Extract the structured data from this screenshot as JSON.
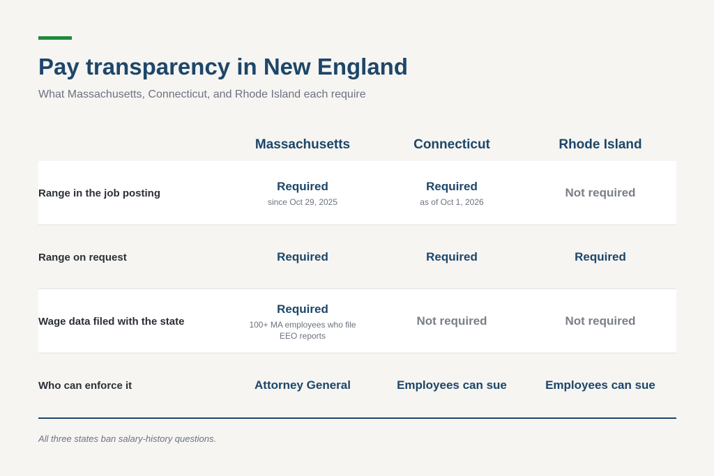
{
  "header": {
    "title": "Pay transparency in New England",
    "subtitle": "What Massachusetts, Connecticut, and Rhode Island each require"
  },
  "colors": {
    "accent": "#1e8a3c",
    "navy": "#1d4669",
    "muted": "#7a7f87"
  },
  "table": {
    "columns": [
      "Massachusetts",
      "Connecticut",
      "Rhode Island"
    ],
    "rows": [
      {
        "label": "Range in the job posting",
        "cells": [
          {
            "status": "Required",
            "note": "since Oct 29, 2025"
          },
          {
            "status": "Required",
            "note": "as of Oct 1, 2026"
          },
          {
            "status": "Not required",
            "note": ""
          }
        ]
      },
      {
        "label": "Range on request",
        "cells": [
          {
            "status": "Required",
            "note": ""
          },
          {
            "status": "Required",
            "note": ""
          },
          {
            "status": "Required",
            "note": ""
          }
        ]
      },
      {
        "label": "Wage data filed with the state",
        "cells": [
          {
            "status": "Required",
            "note": "100+ MA employees who file EEO reports"
          },
          {
            "status": "Not required",
            "note": ""
          },
          {
            "status": "Not required",
            "note": ""
          }
        ]
      },
      {
        "label": "Who can enforce it",
        "cells": [
          {
            "status": "Attorney General",
            "note": ""
          },
          {
            "status": "Employees can sue",
            "note": ""
          },
          {
            "status": "Employees can sue",
            "note": ""
          }
        ]
      }
    ]
  },
  "footnote": "All three states ban salary-history questions."
}
